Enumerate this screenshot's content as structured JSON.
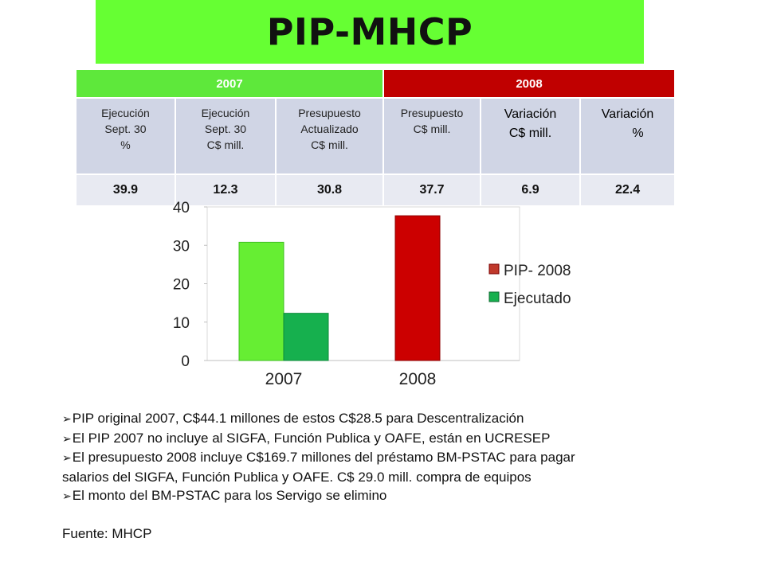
{
  "title": "PIP-MHCP",
  "table": {
    "year_headers": [
      "2007",
      "2008"
    ],
    "column_headers": [
      [
        "Ejecución",
        "Sept. 30",
        "%"
      ],
      [
        "Ejecución",
        "Sept. 30",
        "C$ mill."
      ],
      [
        "Presupuesto",
        "Actualizado",
        "C$ mill."
      ],
      [
        "Presupuesto",
        "C$ mill."
      ],
      [
        "Variación",
        "C$ mill."
      ],
      [
        "Variación",
        "%"
      ]
    ],
    "values": [
      "39.9",
      "12.3",
      "30.8",
      "37.7",
      "6.9",
      "22.4"
    ]
  },
  "chart_data": {
    "type": "bar",
    "categories": [
      "2007",
      "2008"
    ],
    "series": [
      {
        "name": "PIP- 2008",
        "values": [
          30.8,
          37.7
        ]
      },
      {
        "name": "Ejecutado",
        "values": [
          12.3,
          null
        ]
      }
    ],
    "ylim": [
      0,
      40
    ],
    "yticks": [
      0,
      10,
      20,
      30,
      40
    ],
    "colors": {
      "budget_2007": "#66ee33",
      "budget_2008": "#cc0000",
      "executed": "#16b04e",
      "legend_pip": "#c0392b",
      "legend_exec": "#16b04e"
    },
    "legend_position": "right",
    "grid": false
  },
  "notes": {
    "bullets": [
      "PIP original 2007, C$44.1 millones de estos C$28.5 para Descentralización",
      "El PIP 2007 no incluye al SIGFA, Función Publica y OAFE, están en UCRESEP",
      "El presupuesto 2008 incluye C$169.7 millones del préstamo BM-PSTAC para pagar",
      "El monto del BM-PSTAC para los Servigo se elimino"
    ],
    "continuation": "salarios del SIGFA, Función Publica y OAFE. C$ 29.0 mill.  compra de equipos",
    "source": "Fuente: MHCP"
  }
}
